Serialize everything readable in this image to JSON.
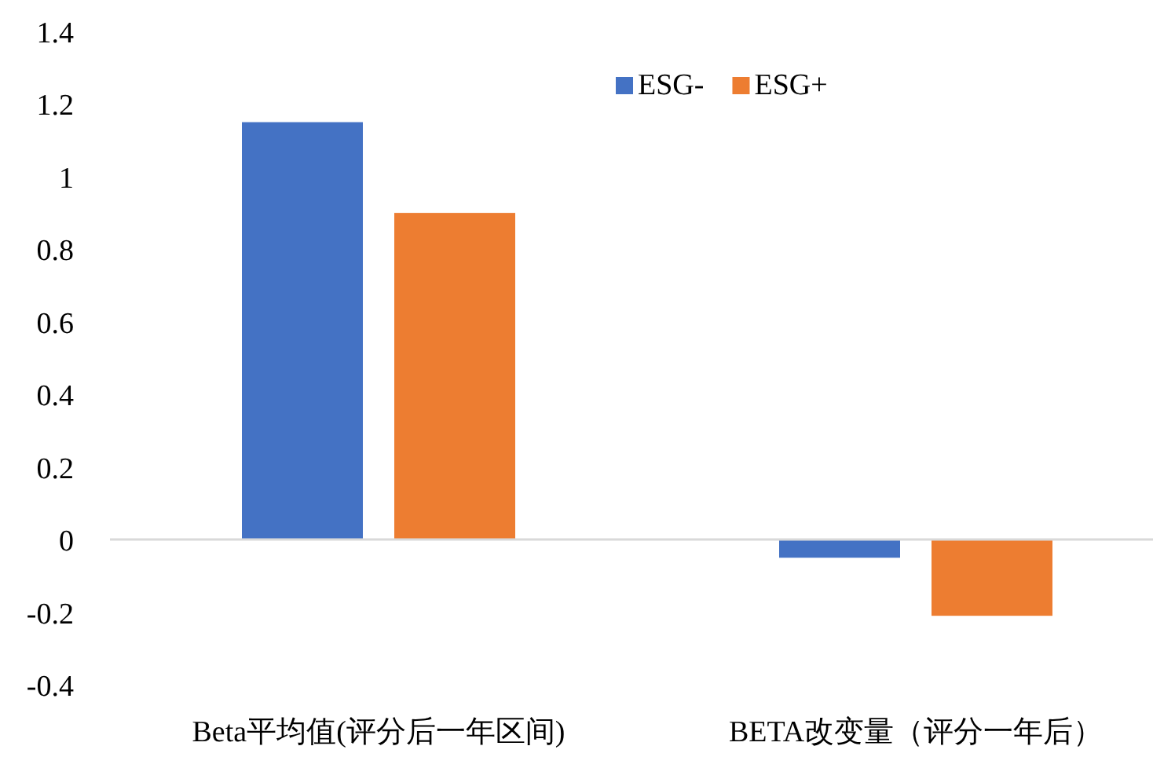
{
  "chart_data": {
    "type": "bar",
    "categories": [
      "Beta平均值(评分后一年区间)",
      "BETA改变量（评分一年后）"
    ],
    "series": [
      {
        "name": "ESG-",
        "color": "#4472c4",
        "values": [
          1.15,
          -0.05
        ]
      },
      {
        "name": "ESG+",
        "color": "#ed7d31",
        "values": [
          0.9,
          -0.21
        ]
      }
    ],
    "ylim": [
      -0.4,
      1.4
    ],
    "yticks": [
      {
        "value": -0.4,
        "label": "-0.4"
      },
      {
        "value": -0.2,
        "label": "-0.2"
      },
      0,
      0.2,
      0.4,
      0.6,
      0.8,
      1,
      1.2,
      1.4
    ],
    "legend": "top"
  }
}
